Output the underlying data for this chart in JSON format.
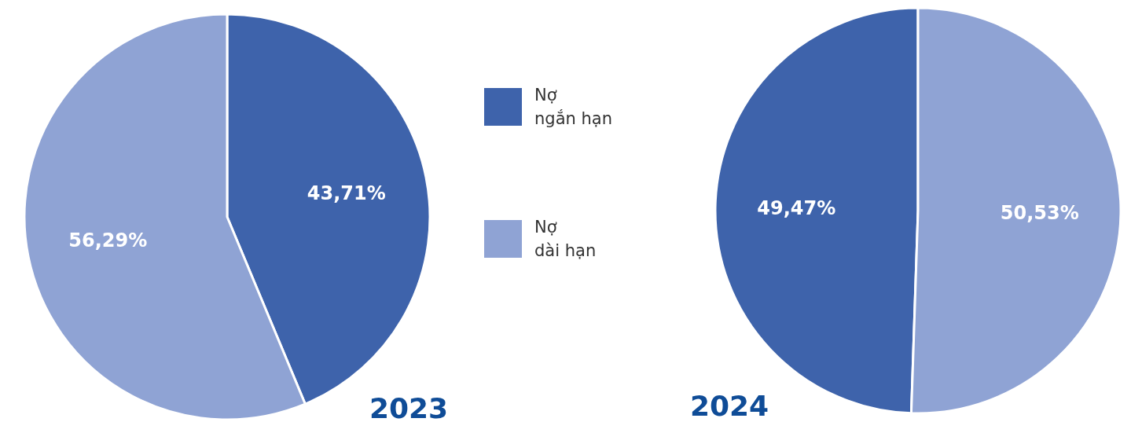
{
  "chart_data": {
    "type": "pie",
    "categories": [
      "Nợ ngắn hạn",
      "Nợ dài hạn"
    ],
    "colors": [
      "#3e63ab",
      "#8fa3d4"
    ],
    "legend": "right",
    "series": [
      {
        "name": "2023",
        "values": [
          43.71,
          56.29
        ],
        "value_labels": [
          "43,71%",
          "56,29%"
        ]
      },
      {
        "name": "2024",
        "values": [
          49.47,
          50.53
        ],
        "value_labels": [
          "49,47%",
          "50,53%"
        ]
      }
    ]
  }
}
